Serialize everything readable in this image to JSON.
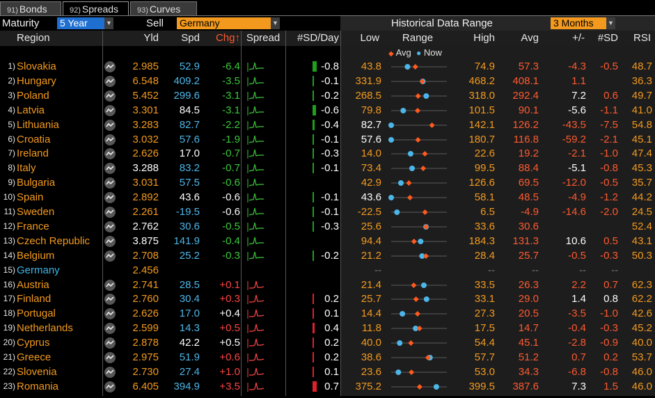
{
  "tabs": [
    {
      "num": "91)",
      "label": "Bonds"
    },
    {
      "num": "92)",
      "label": "Spreads"
    },
    {
      "num": "93)",
      "label": "Curves"
    }
  ],
  "controls": {
    "maturity_label": "Maturity",
    "maturity_value": "5 Year",
    "side_label": "Sell",
    "country_value": "Germany",
    "hist_label": "Historical Data Range",
    "hist_value": "3 Months"
  },
  "columns": {
    "region": "Region",
    "yld": "Yld",
    "spd": "Spd",
    "chg": "Chg↑",
    "spread": "Spread",
    "sdday": "#SD/Day",
    "low": "Low",
    "range": "Range",
    "high": "High",
    "avg": "Avg",
    "pm": "+/-",
    "nsd": "#SD",
    "rsi": "RSI"
  },
  "legend": {
    "avg": "Avg",
    "now": "Now"
  },
  "colors": {
    "accent": "#f39a1e",
    "blue": "#4db6e8",
    "neg": "#3cc83c",
    "pos": "#ff4545",
    "avg_marker": "#ff5a1e"
  },
  "rows": [
    {
      "idx": "1)",
      "region": "Slovakia",
      "yld": "2.985",
      "spd": "52.9",
      "chg": "-6.4",
      "sd": "-0.8",
      "low": "43.8",
      "high": "74.9",
      "avg": "57.3",
      "pm": "-4.3",
      "nsd": "-0.5",
      "rsi": "48.7",
      "now": 52.9,
      "avgv": 57.3,
      "lo": 43.8,
      "hi": 74.9
    },
    {
      "idx": "2)",
      "region": "Hungary",
      "yld": "6.548",
      "spd": "409.2",
      "chg": "-3.5",
      "sd": "-0.1",
      "low": "331.9",
      "high": "468.2",
      "avg": "408.1",
      "pm": "1.1",
      "nsd": "",
      "rsi": "36.3",
      "now": 409.2,
      "avgv": 408.1,
      "lo": 331.9,
      "hi": 468.2
    },
    {
      "idx": "3)",
      "region": "Poland",
      "yld": "5.452",
      "spd": "299.6",
      "chg": "-3.1",
      "sd": "-0.2",
      "low": "268.5",
      "high": "318.0",
      "avg": "292.4",
      "pm": "7.2",
      "nsd": "0.6",
      "rsi": "49.7",
      "now": 299.6,
      "avgv": 292.4,
      "lo": 268.5,
      "hi": 318.0
    },
    {
      "idx": "4)",
      "region": "Latvia",
      "yld": "3.301",
      "spd": "84.5",
      "chg": "-3.1",
      "sd": "-0.6",
      "low": "79.8",
      "high": "101.5",
      "avg": "90.1",
      "pm": "-5.6",
      "nsd": "-1.1",
      "rsi": "41.0",
      "now": 84.5,
      "avgv": 90.1,
      "lo": 79.8,
      "hi": 101.5
    },
    {
      "idx": "5)",
      "region": "Lithuania",
      "yld": "3.283",
      "spd": "82.7",
      "chg": "-2.2",
      "sd": "-0.4",
      "low": "82.7",
      "high": "142.1",
      "avg": "126.2",
      "pm": "-43.5",
      "nsd": "-7.5",
      "rsi": "54.8",
      "now": 82.7,
      "avgv": 126.2,
      "lo": 82.7,
      "hi": 142.1
    },
    {
      "idx": "6)",
      "region": "Croatia",
      "yld": "3.032",
      "spd": "57.6",
      "chg": "-1.9",
      "sd": "-0.1",
      "low": "57.6",
      "high": "180.7",
      "avg": "116.8",
      "pm": "-59.2",
      "nsd": "-2.1",
      "rsi": "45.1",
      "now": 57.6,
      "avgv": 116.8,
      "lo": 57.6,
      "hi": 180.7
    },
    {
      "idx": "7)",
      "region": "Ireland",
      "yld": "2.626",
      "spd": "17.0",
      "chg": "-0.7",
      "sd": "-0.3",
      "low": "14.0",
      "high": "22.6",
      "avg": "19.2",
      "pm": "-2.1",
      "nsd": "-1.0",
      "rsi": "47.4",
      "now": 17.0,
      "avgv": 19.2,
      "lo": 14.0,
      "hi": 22.6
    },
    {
      "idx": "8)",
      "region": "Italy",
      "yld": "3.288",
      "spd": "83.2",
      "chg": "-0.7",
      "sd": "-0.1",
      "low": "73.4",
      "high": "99.5",
      "avg": "88.4",
      "pm": "-5.1",
      "nsd": "-0.8",
      "rsi": "45.3",
      "now": 83.2,
      "avgv": 88.4,
      "lo": 73.4,
      "hi": 99.5
    },
    {
      "idx": "9)",
      "region": "Bulgaria",
      "yld": "3.031",
      "spd": "57.5",
      "chg": "-0.6",
      "sd": "",
      "low": "42.9",
      "high": "126.6",
      "avg": "69.5",
      "pm": "-12.0",
      "nsd": "-0.5",
      "rsi": "35.7",
      "now": 57.5,
      "avgv": 69.5,
      "lo": 42.9,
      "hi": 126.6
    },
    {
      "idx": "10)",
      "region": "Spain",
      "yld": "2.892",
      "spd": "43.6",
      "chg": "-0.6",
      "sd": "-0.1",
      "low": "43.6",
      "high": "58.1",
      "avg": "48.5",
      "pm": "-4.9",
      "nsd": "-1.2",
      "rsi": "44.2",
      "now": 43.6,
      "avgv": 48.5,
      "lo": 43.6,
      "hi": 58.1
    },
    {
      "idx": "11)",
      "region": "Sweden",
      "yld": "2.261",
      "spd": "-19.5",
      "chg": "-0.6",
      "sd": "-0.1",
      "low": "-22.5",
      "high": "6.5",
      "avg": "-4.9",
      "pm": "-14.6",
      "nsd": "-2.0",
      "rsi": "24.5",
      "now": -19.5,
      "avgv": -4.9,
      "lo": -22.5,
      "hi": 6.5
    },
    {
      "idx": "12)",
      "region": "France",
      "yld": "2.762",
      "spd": "30.6",
      "chg": "-0.5",
      "sd": "-0.3",
      "low": "25.6",
      "high": "33.6",
      "avg": "30.6",
      "pm": "",
      "nsd": "",
      "rsi": "52.4",
      "now": 30.6,
      "avgv": 30.6,
      "lo": 25.6,
      "hi": 33.6
    },
    {
      "idx": "13)",
      "region": "Czech Republic",
      "yld": "3.875",
      "spd": "141.9",
      "chg": "-0.4",
      "sd": "",
      "low": "94.4",
      "high": "184.3",
      "avg": "131.3",
      "pm": "10.6",
      "nsd": "0.5",
      "rsi": "43.1",
      "now": 141.9,
      "avgv": 131.3,
      "lo": 94.4,
      "hi": 184.3
    },
    {
      "idx": "14)",
      "region": "Belgium",
      "yld": "2.708",
      "spd": "25.2",
      "chg": "-0.3",
      "sd": "-0.2",
      "low": "21.2",
      "high": "28.4",
      "avg": "25.7",
      "pm": "-0.5",
      "nsd": "-0.3",
      "rsi": "50.3",
      "now": 25.2,
      "avgv": 25.7,
      "lo": 21.2,
      "hi": 28.4
    },
    {
      "idx": "15)",
      "region": "Germany",
      "yld": "2.456",
      "spd": "",
      "chg": "",
      "sd": "",
      "low": "--",
      "high": "--",
      "avg": "--",
      "pm": "--",
      "nsd": "--",
      "rsi": "",
      "base": true
    },
    {
      "idx": "16)",
      "region": "Austria",
      "yld": "2.741",
      "spd": "28.5",
      "chg": "+0.1",
      "sd": "",
      "low": "21.4",
      "high": "33.5",
      "avg": "26.3",
      "pm": "2.2",
      "nsd": "0.7",
      "rsi": "62.3",
      "now": 28.5,
      "avgv": 26.3,
      "lo": 21.4,
      "hi": 33.5
    },
    {
      "idx": "17)",
      "region": "Finland",
      "yld": "2.760",
      "spd": "30.4",
      "chg": "+0.3",
      "sd": "0.2",
      "low": "25.7",
      "high": "33.1",
      "avg": "29.0",
      "pm": "1.4",
      "nsd": "0.8",
      "rsi": "62.2",
      "now": 30.4,
      "avgv": 29.0,
      "lo": 25.7,
      "hi": 33.1
    },
    {
      "idx": "18)",
      "region": "Portugal",
      "yld": "2.626",
      "spd": "17.0",
      "chg": "+0.4",
      "sd": "0.1",
      "low": "14.4",
      "high": "27.3",
      "avg": "20.5",
      "pm": "-3.5",
      "nsd": "-1.0",
      "rsi": "42.6",
      "now": 17.0,
      "avgv": 20.5,
      "lo": 14.4,
      "hi": 27.3
    },
    {
      "idx": "19)",
      "region": "Netherlands",
      "yld": "2.599",
      "spd": "14.3",
      "chg": "+0.5",
      "sd": "0.4",
      "low": "11.8",
      "high": "17.5",
      "avg": "14.7",
      "pm": "-0.4",
      "nsd": "-0.3",
      "rsi": "45.2",
      "now": 14.3,
      "avgv": 14.7,
      "lo": 11.8,
      "hi": 17.5
    },
    {
      "idx": "20)",
      "region": "Cyprus",
      "yld": "2.878",
      "spd": "42.2",
      "chg": "+0.5",
      "sd": "0.2",
      "low": "40.0",
      "high": "54.4",
      "avg": "45.1",
      "pm": "-2.8",
      "nsd": "-0.9",
      "rsi": "40.0",
      "now": 42.2,
      "avgv": 45.1,
      "lo": 40.0,
      "hi": 54.4
    },
    {
      "idx": "21)",
      "region": "Greece",
      "yld": "2.975",
      "spd": "51.9",
      "chg": "+0.6",
      "sd": "0.2",
      "low": "38.6",
      "high": "57.7",
      "avg": "51.2",
      "pm": "0.7",
      "nsd": "0.2",
      "rsi": "53.7",
      "now": 51.9,
      "avgv": 51.2,
      "lo": 38.6,
      "hi": 57.7
    },
    {
      "idx": "22)",
      "region": "Slovenia",
      "yld": "2.730",
      "spd": "27.4",
      "chg": "+1.0",
      "sd": "0.1",
      "low": "23.6",
      "high": "53.0",
      "avg": "34.3",
      "pm": "-6.8",
      "nsd": "-0.8",
      "rsi": "46.0",
      "now": 27.4,
      "avgv": 34.3,
      "lo": 23.6,
      "hi": 53.0
    },
    {
      "idx": "23)",
      "region": "Romania",
      "yld": "6.405",
      "spd": "394.9",
      "chg": "+3.5",
      "sd": "0.7",
      "low": "375.2",
      "high": "399.5",
      "avg": "387.6",
      "pm": "7.3",
      "nsd": "1.5",
      "rsi": "46.0",
      "now": 394.9,
      "avgv": 387.6,
      "lo": 375.2,
      "hi": 399.5
    }
  ]
}
